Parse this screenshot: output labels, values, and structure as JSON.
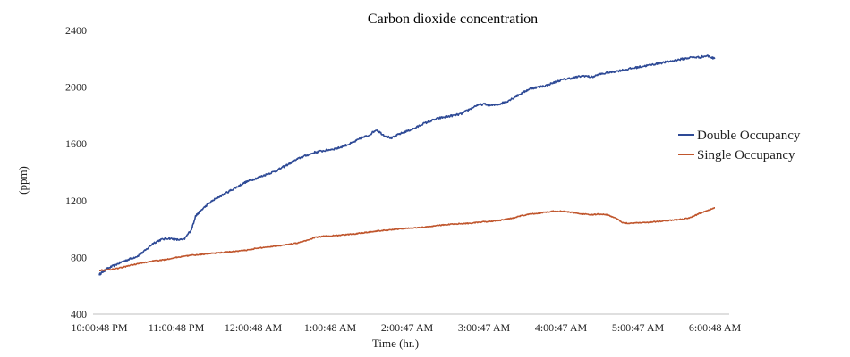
{
  "chart_data": {
    "type": "line",
    "title": "Carbon dioxide concentration",
    "xlabel": "Time (hr.)",
    "ylabel": "(ppm)",
    "ylim": [
      400,
      2400
    ],
    "yticks": [
      400,
      800,
      1200,
      1600,
      2000,
      2400
    ],
    "x_tick_labels": [
      "10:00:48 PM",
      "11:00:48 PM",
      "12:00:48 AM",
      "1:00:48 AM",
      "2:00:47 AM",
      "3:00:47 AM",
      "4:00:47 AM",
      "5:00:47 AM",
      "6:00:48 AM"
    ],
    "x_hours_range": [
      0,
      8
    ],
    "grid": false,
    "legend": "right",
    "series": [
      {
        "name": "Double Occupancy",
        "color": "#2e4a96",
        "x": [
          0,
          0.05,
          0.1,
          0.2,
          0.3,
          0.4,
          0.5,
          0.6,
          0.7,
          0.8,
          0.9,
          1.0,
          1.1,
          1.2,
          1.25,
          1.3,
          1.4,
          1.5,
          1.6,
          1.7,
          1.8,
          1.9,
          2.0,
          2.1,
          2.2,
          2.3,
          2.4,
          2.5,
          2.6,
          2.7,
          2.8,
          2.9,
          3.0,
          3.1,
          3.2,
          3.3,
          3.4,
          3.5,
          3.6,
          3.7,
          3.8,
          3.9,
          4.0,
          4.1,
          4.2,
          4.3,
          4.4,
          4.5,
          4.6,
          4.7,
          4.8,
          4.9,
          5.0,
          5.1,
          5.2,
          5.3,
          5.4,
          5.5,
          5.6,
          5.7,
          5.8,
          5.9,
          6.0,
          6.1,
          6.2,
          6.3,
          6.4,
          6.5,
          6.6,
          6.7,
          6.8,
          6.9,
          7.0,
          7.1,
          7.2,
          7.3,
          7.4,
          7.5,
          7.6,
          7.7,
          7.8,
          7.9,
          8.0
        ],
        "y": [
          680,
          700,
          720,
          745,
          770,
          790,
          810,
          850,
          900,
          925,
          935,
          925,
          925,
          1000,
          1090,
          1120,
          1170,
          1210,
          1240,
          1270,
          1300,
          1330,
          1350,
          1370,
          1390,
          1410,
          1440,
          1470,
          1500,
          1520,
          1540,
          1550,
          1560,
          1570,
          1590,
          1610,
          1640,
          1660,
          1700,
          1660,
          1640,
          1670,
          1690,
          1710,
          1740,
          1760,
          1780,
          1790,
          1800,
          1810,
          1840,
          1870,
          1880,
          1870,
          1880,
          1900,
          1930,
          1960,
          1990,
          2000,
          2010,
          2030,
          2050,
          2060,
          2070,
          2080,
          2070,
          2090,
          2100,
          2110,
          2120,
          2130,
          2140,
          2150,
          2160,
          2170,
          2180,
          2190,
          2200,
          2210,
          2210,
          2220,
          2200
        ]
      },
      {
        "name": "Single Occupancy",
        "color": "#c0562d",
        "x": [
          0,
          0.1,
          0.2,
          0.3,
          0.4,
          0.5,
          0.6,
          0.7,
          0.8,
          0.9,
          1.0,
          1.1,
          1.2,
          1.3,
          1.4,
          1.5,
          1.6,
          1.7,
          1.8,
          1.9,
          2.0,
          2.1,
          2.2,
          2.3,
          2.4,
          2.5,
          2.6,
          2.7,
          2.8,
          2.9,
          3.0,
          3.1,
          3.2,
          3.3,
          3.4,
          3.5,
          3.6,
          3.7,
          3.8,
          3.9,
          4.0,
          4.1,
          4.2,
          4.3,
          4.4,
          4.5,
          4.6,
          4.7,
          4.8,
          4.9,
          5.0,
          5.1,
          5.2,
          5.3,
          5.4,
          5.5,
          5.6,
          5.7,
          5.8,
          5.9,
          6.0,
          6.1,
          6.2,
          6.3,
          6.4,
          6.5,
          6.6,
          6.7,
          6.8,
          6.9,
          7.0,
          7.1,
          7.2,
          7.3,
          7.4,
          7.5,
          7.6,
          7.7,
          7.8,
          7.9,
          8.0
        ],
        "y": [
          710,
          712,
          720,
          730,
          745,
          755,
          765,
          775,
          780,
          790,
          800,
          808,
          815,
          820,
          825,
          830,
          835,
          840,
          845,
          850,
          860,
          868,
          875,
          880,
          888,
          895,
          905,
          920,
          940,
          948,
          952,
          955,
          960,
          965,
          972,
          978,
          985,
          990,
          995,
          1000,
          1005,
          1008,
          1012,
          1018,
          1025,
          1030,
          1035,
          1038,
          1040,
          1045,
          1050,
          1055,
          1060,
          1070,
          1080,
          1095,
          1105,
          1110,
          1120,
          1125,
          1125,
          1120,
          1112,
          1105,
          1100,
          1105,
          1100,
          1080,
          1045,
          1040,
          1045,
          1045,
          1050,
          1055,
          1060,
          1065,
          1070,
          1085,
          1110,
          1130,
          1150
        ]
      }
    ]
  }
}
